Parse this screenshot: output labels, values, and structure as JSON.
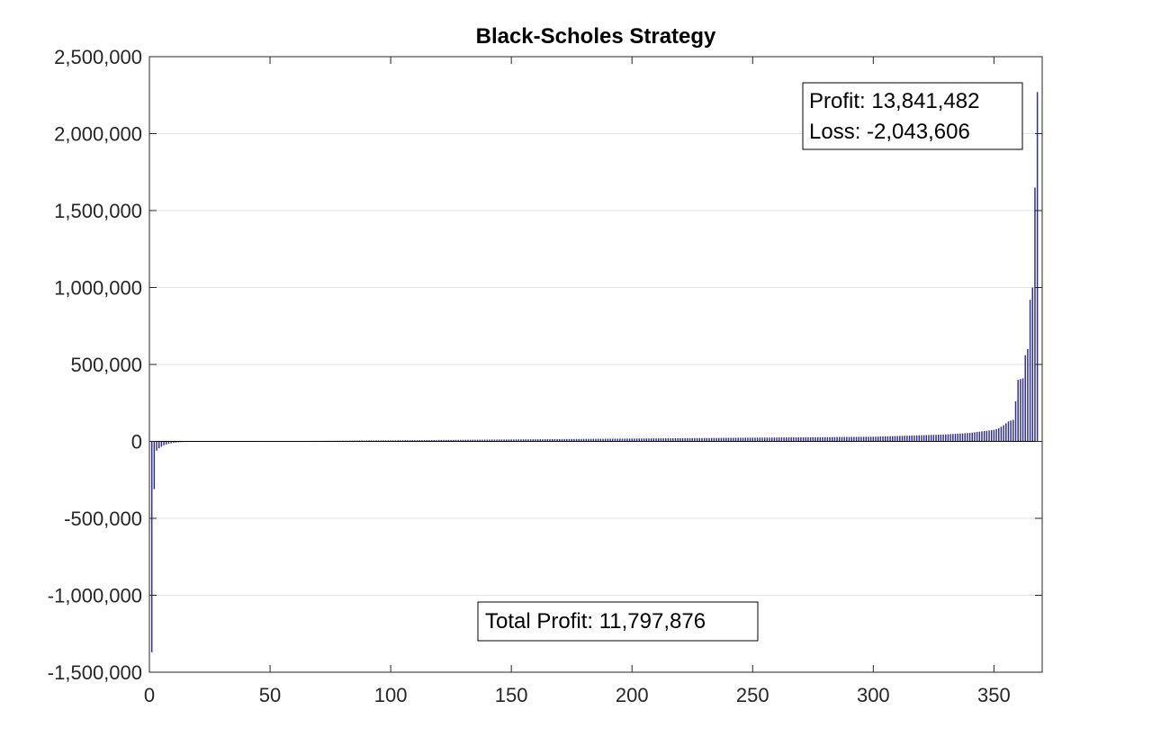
{
  "chart_data": {
    "type": "bar",
    "title": "Black-Scholes Strategy",
    "xlabel": "",
    "ylabel": "",
    "xlim": [
      0,
      370
    ],
    "ylim": [
      -1500000,
      2500000
    ],
    "xticks": [
      0,
      50,
      100,
      150,
      200,
      250,
      300,
      350
    ],
    "xtick_labels": [
      "0",
      "50",
      "100",
      "150",
      "200",
      "250",
      "300",
      "350"
    ],
    "yticks": [
      -1500000,
      -1000000,
      -500000,
      0,
      500000,
      1000000,
      1500000,
      2000000,
      2500000
    ],
    "ytick_labels": [
      "-1,500,000",
      "-1,000,000",
      "-500,000",
      "0",
      "500,000",
      "1,000,000",
      "1,500,000",
      "2,000,000",
      "2,500,000"
    ],
    "grid": true,
    "bar_color": "#2f2f8f",
    "x": [
      1,
      2,
      3,
      4,
      5,
      6,
      7,
      8,
      9,
      10,
      11,
      12,
      13,
      14,
      15,
      300,
      310,
      320,
      330,
      340,
      345,
      350,
      352,
      354,
      356,
      357,
      358,
      359,
      360,
      361,
      362,
      363,
      364,
      365,
      366,
      367,
      368
    ],
    "values": [
      -1370000,
      -310000,
      -60000,
      -45000,
      -35000,
      -25000,
      -20000,
      -15000,
      -12000,
      -10000,
      -8000,
      -6000,
      -5000,
      -4000,
      -3000,
      30000,
      35000,
      40000,
      45000,
      55000,
      65000,
      75000,
      85000,
      105000,
      130000,
      135000,
      140000,
      260000,
      400000,
      405000,
      410000,
      560000,
      600000,
      920000,
      1000000,
      1650000,
      2270000
    ],
    "annotations": {
      "profit": "Profit: 13,841,482",
      "loss": "Loss: -2,043,606",
      "total": "Total Profit: 11,797,876"
    }
  }
}
